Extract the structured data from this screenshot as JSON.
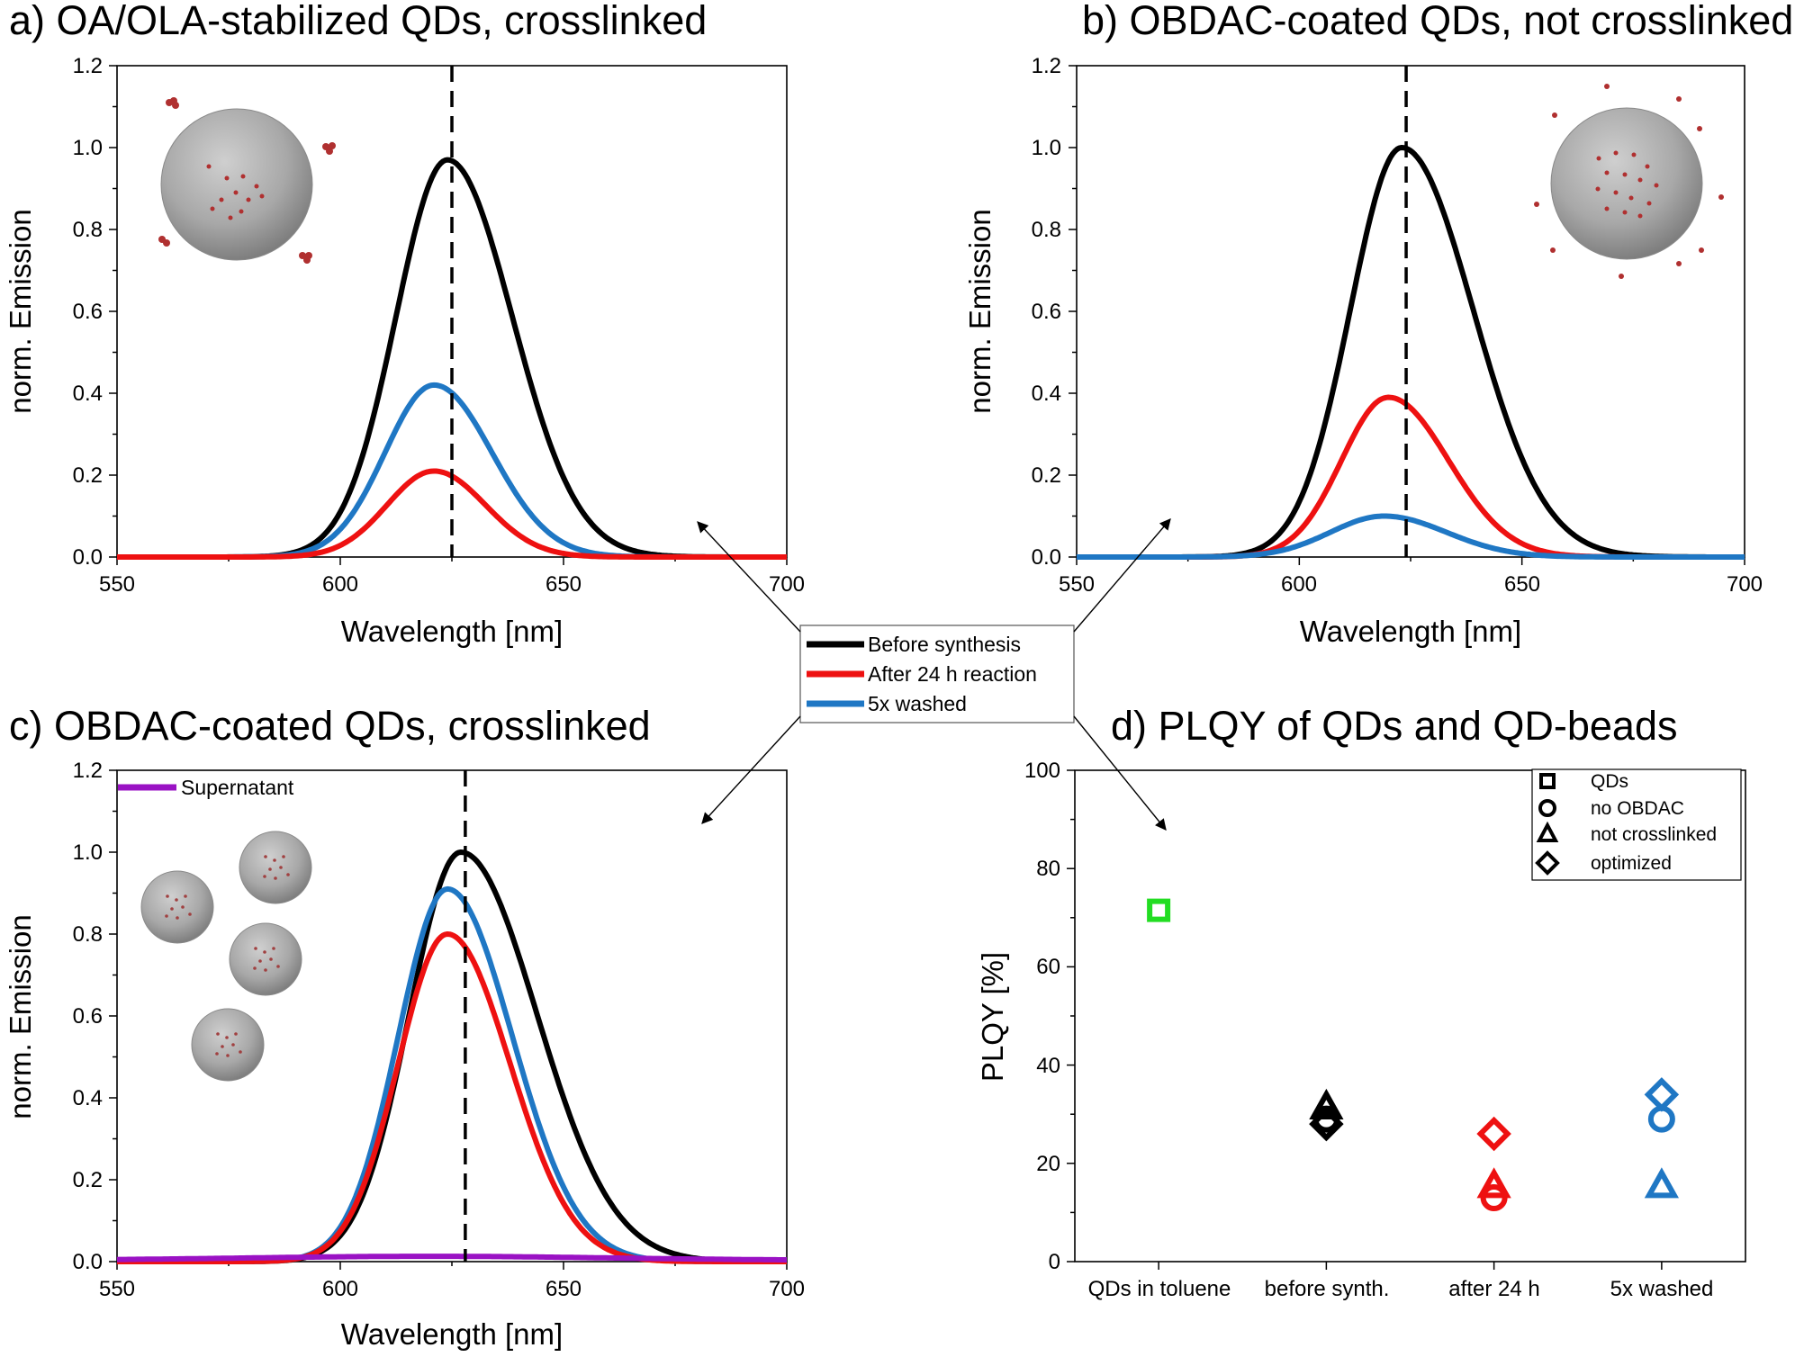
{
  "chart_data": [
    {
      "id": "a",
      "type": "line",
      "title": "a) OA/OLA-stabilized QDs, crosslinked",
      "xlabel": "Wavelength [nm]",
      "ylabel": "norm. Emission",
      "xlim": [
        550,
        700
      ],
      "ylim": [
        0,
        1.2
      ],
      "xticks": [
        "550",
        "600",
        "650",
        "700"
      ],
      "yticks": [
        "0.0",
        "0.2",
        "0.4",
        "0.6",
        "0.8",
        "1.0",
        "1.2"
      ],
      "dashed_x": 625,
      "series": [
        {
          "name": "Before synthesis",
          "color": "#000000",
          "peak": 0.97,
          "center": 624,
          "sigma_left": 11.5,
          "sigma_right": 14.5,
          "baseline": 0.0
        },
        {
          "name": "5x washed",
          "color": "#1f77c4",
          "peak": 0.42,
          "center": 621,
          "sigma_left": 11.0,
          "sigma_right": 13.0,
          "baseline": 0.0
        },
        {
          "name": "After 24 h reaction",
          "color": "#ee1111",
          "peak": 0.21,
          "center": 621,
          "sigma_left": 10.5,
          "sigma_right": 11.5,
          "baseline": 0.0
        }
      ]
    },
    {
      "id": "b",
      "type": "line",
      "title": "b) OBDAC-coated QDs, not crosslinked",
      "xlabel": "Wavelength [nm]",
      "ylabel": "norm. Emission",
      "xlim": [
        550,
        700
      ],
      "ylim": [
        0,
        1.2
      ],
      "xticks": [
        "550",
        "600",
        "650",
        "700"
      ],
      "yticks": [
        "0.0",
        "0.2",
        "0.4",
        "0.6",
        "0.8",
        "1.0",
        "1.2"
      ],
      "dashed_x": 624,
      "series": [
        {
          "name": "Before synthesis",
          "color": "#000000",
          "peak": 1.0,
          "center": 623,
          "sigma_left": 11.5,
          "sigma_right": 16.0,
          "baseline": 0.0
        },
        {
          "name": "After 24 h reaction",
          "color": "#ee1111",
          "peak": 0.39,
          "center": 620,
          "sigma_left": 10.5,
          "sigma_right": 13.5,
          "baseline": 0.0
        },
        {
          "name": "5x washed",
          "color": "#1f77c4",
          "peak": 0.1,
          "center": 619,
          "sigma_left": 12.0,
          "sigma_right": 14.0,
          "baseline": 0.0
        }
      ]
    },
    {
      "id": "c",
      "type": "line",
      "title": "c) OBDAC-coated QDs, crosslinked",
      "xlabel": "Wavelength [nm]",
      "ylabel": "norm. Emission",
      "xlim": [
        550,
        700
      ],
      "ylim": [
        0,
        1.2
      ],
      "xticks": [
        "550",
        "600",
        "650",
        "700"
      ],
      "yticks": [
        "0.0",
        "0.2",
        "0.4",
        "0.6",
        "0.8",
        "1.0",
        "1.2"
      ],
      "dashed_x": 628,
      "legend": [
        "Supernatant"
      ],
      "series": [
        {
          "name": "Before synthesis",
          "color": "#000000",
          "peak": 1.0,
          "center": 627,
          "sigma_left": 11.5,
          "sigma_right": 17.0,
          "baseline": 0.0
        },
        {
          "name": "5x washed",
          "color": "#1f77c4",
          "peak": 0.91,
          "center": 624,
          "sigma_left": 11.0,
          "sigma_right": 14.5,
          "baseline": 0.0
        },
        {
          "name": "After 24 h reaction",
          "color": "#ee1111",
          "peak": 0.8,
          "center": 624,
          "sigma_left": 11.0,
          "sigma_right": 14.0,
          "baseline": 0.0
        },
        {
          "name": "Supernatant",
          "color": "#9a12c4",
          "peak": 0.01,
          "center": 620,
          "sigma_left": 40.0,
          "sigma_right": 40.0,
          "baseline": 0.003
        }
      ]
    },
    {
      "id": "d",
      "type": "scatter",
      "title": "d) PLQY of QDs and QD-beads",
      "ylabel": "PLQY [%]",
      "ylim": [
        0,
        100
      ],
      "yticks": [
        "0",
        "20",
        "40",
        "60",
        "80",
        "100"
      ],
      "categories": [
        "QDs in toluene",
        "before synth.",
        "after 24 h",
        "5x washed"
      ],
      "legend": [
        "QDs",
        "no OBDAC",
        "not crosslinked",
        "optimized"
      ],
      "points": [
        {
          "category": 0,
          "marker": "square",
          "value": 71.5,
          "color": "#22dd22"
        },
        {
          "category": 1,
          "marker": "triangle",
          "value": 31.5,
          "color": "#000000"
        },
        {
          "category": 1,
          "marker": "circle",
          "value": 29.0,
          "color": "#000000"
        },
        {
          "category": 1,
          "marker": "diamond",
          "value": 28.0,
          "color": "#000000"
        },
        {
          "category": 2,
          "marker": "diamond",
          "value": 26.0,
          "color": "#ee1111"
        },
        {
          "category": 2,
          "marker": "triangle",
          "value": 15.5,
          "color": "#ee1111"
        },
        {
          "category": 2,
          "marker": "circle",
          "value": 13.0,
          "color": "#ee1111"
        },
        {
          "category": 3,
          "marker": "diamond",
          "value": 34.0,
          "color": "#1f77c4"
        },
        {
          "category": 3,
          "marker": "circle",
          "value": 29.0,
          "color": "#1f77c4"
        },
        {
          "category": 3,
          "marker": "triangle",
          "value": 15.5,
          "color": "#1f77c4"
        }
      ]
    }
  ],
  "shared_legend": [
    {
      "label": "Before synthesis",
      "color": "#000000"
    },
    {
      "label": "After 24 h reaction",
      "color": "#ee1111"
    },
    {
      "label": "5x washed",
      "color": "#1f77c4"
    }
  ]
}
